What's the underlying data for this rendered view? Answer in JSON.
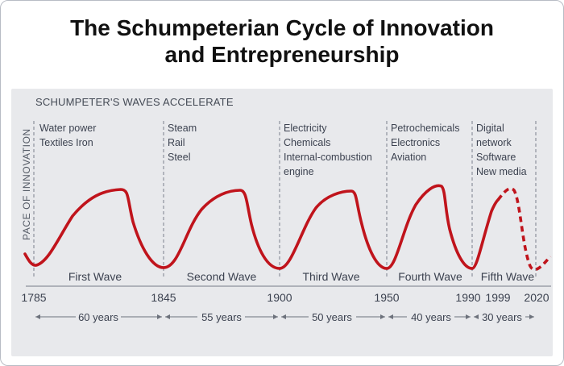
{
  "title_line1": "The Schumpeterian Cycle of Innovation",
  "title_line2": "and Entrepreneurship",
  "colors": {
    "curve": "#c0141c",
    "panel": "#e8e9ec",
    "text": "#3c4250"
  },
  "chart_data": {
    "type": "line",
    "title": "The Schumpeterian Cycle of Innovation and Entrepreneurship",
    "subtitle": "SCHUMPETER'S WAVES ACCELERATE",
    "ylabel": "PACE OF INNOVATION",
    "xlabel": "",
    "x_ticks": [
      "1785",
      "1845",
      "1900",
      "1950",
      "1990",
      "1999",
      "2020"
    ],
    "grid": false,
    "waves": [
      {
        "name": "First Wave",
        "start": "1785",
        "end": "1845",
        "duration": "60 years",
        "innovations": [
          "Water power",
          "Textiles Iron"
        ]
      },
      {
        "name": "Second Wave",
        "start": "1845",
        "end": "1900",
        "duration": "55 years",
        "innovations": [
          "Steam",
          "Rail",
          "Steel"
        ]
      },
      {
        "name": "Third Wave",
        "start": "1900",
        "end": "1950",
        "duration": "50 years",
        "innovations": [
          "Electricity",
          "Chemicals",
          "Internal-combustion",
          "engine"
        ]
      },
      {
        "name": "Fourth Wave",
        "start": "1950",
        "end": "1990",
        "duration": "40 years",
        "innovations": [
          "Petrochemicals",
          "Electronics",
          "Aviation"
        ]
      },
      {
        "name": "Fifth Wave",
        "start": "1990",
        "end": "2020",
        "duration": "30 years",
        "innovations": [
          "Digital",
          "network",
          "Software",
          "New media"
        ],
        "projected_part": "dashed after 1999"
      }
    ]
  }
}
